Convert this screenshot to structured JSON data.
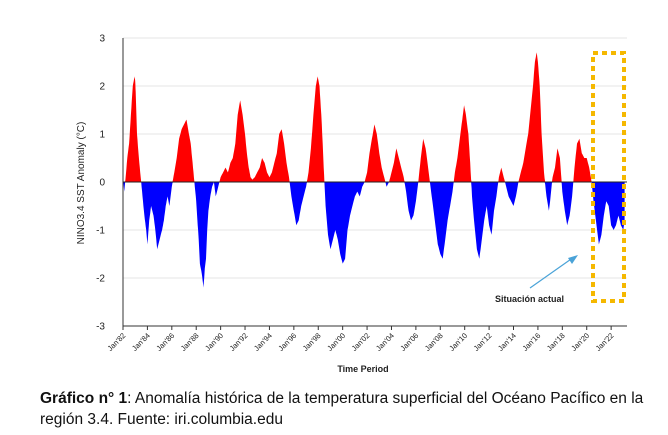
{
  "chart_data": {
    "type": "area",
    "ylabel": "NINO3.4 SST Anomaly (°C)",
    "xlabel": "Time Period",
    "ylim": [
      -3,
      3
    ],
    "yticks": [
      3,
      2,
      1,
      0,
      -1,
      -2,
      -3
    ],
    "xlim": [
      1982,
      2023.3
    ],
    "xtick_years": [
      1982,
      1984,
      1986,
      1988,
      1990,
      1992,
      1994,
      1996,
      1998,
      2000,
      2002,
      2004,
      2006,
      2008,
      2010,
      2012,
      2014,
      2016,
      2018,
      2020,
      2022
    ],
    "xtick_labels": [
      "Jan'82",
      "Jan'84",
      "Jan'86",
      "Jan'88",
      "Jan'90",
      "Jan'92",
      "Jan'94",
      "Jan'96",
      "Jan'98",
      "Jan'00",
      "Jan'02",
      "Jan'04",
      "Jan'06",
      "Jan'08",
      "Jan'10",
      "Jan'12",
      "Jan'14",
      "Jan'16",
      "Jan'18",
      "Jan'20",
      "Jan'22"
    ],
    "grid": "horizontal",
    "colors": {
      "positive": "#ff0000",
      "negative": "#0000ff",
      "highlight_box": "#f5b800",
      "annotation": "#4aa3d8"
    },
    "annotation": {
      "text": "Situación actual"
    },
    "series": [
      {
        "x": [
          1982.0,
          1982.1,
          1982.2,
          1982.35,
          1982.5,
          1982.65,
          1982.8,
          1982.95,
          1983.0,
          1983.05,
          1983.15,
          1983.3,
          1983.45,
          1983.6,
          1983.75,
          1983.9,
          1984.0,
          1984.15,
          1984.3,
          1984.5,
          1984.65,
          1984.8,
          1985.0,
          1985.2,
          1985.35,
          1985.5,
          1985.65,
          1985.8,
          1986.0,
          1986.2,
          1986.4,
          1986.6,
          1986.8,
          1987.0,
          1987.2,
          1987.4,
          1987.55,
          1987.7,
          1987.85,
          1988.0,
          1988.1,
          1988.2,
          1988.3,
          1988.45,
          1988.6,
          1988.7,
          1988.8,
          1988.9,
          1989.0,
          1989.15,
          1989.3,
          1989.45,
          1989.6,
          1989.8,
          1990.0,
          1990.2,
          1990.4,
          1990.6,
          1990.8,
          1991.0,
          1991.2,
          1991.4,
          1991.6,
          1991.8,
          1992.0,
          1992.15,
          1992.3,
          1992.45,
          1992.6,
          1992.8,
          1993.0,
          1993.2,
          1993.4,
          1993.6,
          1993.8,
          1994.0,
          1994.2,
          1994.4,
          1994.6,
          1994.8,
          1995.0,
          1995.2,
          1995.4,
          1995.6,
          1995.8,
          1996.0,
          1996.2,
          1996.4,
          1996.6,
          1996.8,
          1997.0,
          1997.2,
          1997.4,
          1997.6,
          1997.8,
          1997.95,
          1998.1,
          1998.25,
          1998.4,
          1998.5,
          1998.6,
          1998.8,
          1999.0,
          1999.2,
          1999.4,
          1999.6,
          1999.8,
          2000.0,
          2000.2,
          2000.4,
          2000.6,
          2000.8,
          2001.0,
          2001.2,
          2001.4,
          2001.6,
          2001.8,
          2002.0,
          2002.2,
          2002.4,
          2002.6,
          2002.8,
          2003.0,
          2003.2,
          2003.4,
          2003.6,
          2003.8,
          2004.0,
          2004.2,
          2004.4,
          2004.6,
          2004.8,
          2005.0,
          2005.2,
          2005.4,
          2005.6,
          2005.8,
          2006.0,
          2006.2,
          2006.4,
          2006.6,
          2006.8,
          2007.0,
          2007.2,
          2007.4,
          2007.6,
          2007.8,
          2008.0,
          2008.2,
          2008.4,
          2008.6,
          2008.8,
          2009.0,
          2009.2,
          2009.4,
          2009.6,
          2009.8,
          2009.95,
          2010.1,
          2010.3,
          2010.45,
          2010.6,
          2010.8,
          2011.0,
          2011.2,
          2011.4,
          2011.6,
          2011.8,
          2012.0,
          2012.2,
          2012.4,
          2012.6,
          2012.8,
          2013.0,
          2013.2,
          2013.4,
          2013.6,
          2013.8,
          2014.0,
          2014.2,
          2014.4,
          2014.6,
          2014.8,
          2015.0,
          2015.2,
          2015.4,
          2015.6,
          2015.75,
          2015.9,
          2016.0,
          2016.15,
          2016.3,
          2016.5,
          2016.7,
          2016.9,
          2017.0,
          2017.2,
          2017.4,
          2017.6,
          2017.8,
          2018.0,
          2018.2,
          2018.4,
          2018.6,
          2018.8,
          2019.0,
          2019.2,
          2019.4,
          2019.6,
          2019.8,
          2020.0,
          2020.2,
          2020.4,
          2020.6,
          2020.8,
          2021.0,
          2021.2,
          2021.4,
          2021.6,
          2021.8,
          2022.0,
          2022.2,
          2022.4,
          2022.6,
          2022.8,
          2023.0,
          2023.1
        ],
        "values": [
          0.1,
          -0.2,
          0.05,
          0.5,
          0.8,
          1.4,
          2.0,
          2.2,
          2.1,
          1.8,
          1.0,
          0.5,
          0.1,
          -0.3,
          -0.7,
          -1.0,
          -1.3,
          -0.8,
          -0.5,
          -0.7,
          -1.0,
          -1.4,
          -1.2,
          -1.0,
          -0.8,
          -0.5,
          -0.3,
          -0.5,
          -0.1,
          0.2,
          0.5,
          0.9,
          1.1,
          1.2,
          1.3,
          1.0,
          0.8,
          0.4,
          0.0,
          -0.4,
          -0.8,
          -1.2,
          -1.7,
          -1.9,
          -2.2,
          -1.8,
          -1.6,
          -1.0,
          -0.6,
          -0.3,
          -0.1,
          0.0,
          -0.3,
          -0.1,
          0.1,
          0.2,
          0.3,
          0.2,
          0.4,
          0.5,
          0.8,
          1.4,
          1.7,
          1.4,
          1.0,
          0.6,
          0.3,
          0.1,
          0.05,
          0.1,
          0.2,
          0.3,
          0.5,
          0.4,
          0.2,
          0.1,
          0.2,
          0.4,
          0.6,
          1.0,
          1.1,
          0.8,
          0.4,
          0.1,
          -0.3,
          -0.6,
          -0.9,
          -0.8,
          -0.5,
          -0.3,
          -0.1,
          0.2,
          0.7,
          1.4,
          2.0,
          2.2,
          2.0,
          1.4,
          0.6,
          0.0,
          -0.5,
          -1.1,
          -1.4,
          -1.2,
          -1.0,
          -1.2,
          -1.5,
          -1.7,
          -1.6,
          -1.0,
          -0.7,
          -0.5,
          -0.3,
          -0.2,
          -0.3,
          -0.1,
          0.0,
          0.2,
          0.6,
          0.9,
          1.2,
          1.0,
          0.6,
          0.3,
          0.1,
          -0.1,
          0.0,
          0.2,
          0.4,
          0.7,
          0.5,
          0.3,
          0.1,
          -0.2,
          -0.6,
          -0.8,
          -0.7,
          -0.4,
          0.0,
          0.5,
          0.9,
          0.7,
          0.3,
          -0.1,
          -0.5,
          -0.9,
          -1.3,
          -1.5,
          -1.6,
          -1.2,
          -0.8,
          -0.5,
          -0.2,
          0.2,
          0.5,
          0.9,
          1.3,
          1.6,
          1.4,
          1.0,
          0.4,
          -0.3,
          -0.9,
          -1.4,
          -1.6,
          -1.2,
          -0.8,
          -0.5,
          -0.9,
          -1.1,
          -0.6,
          -0.3,
          0.1,
          0.3,
          0.1,
          -0.1,
          -0.3,
          -0.4,
          -0.5,
          -0.3,
          0.0,
          0.2,
          0.4,
          0.7,
          1.0,
          1.5,
          2.0,
          2.5,
          2.7,
          2.5,
          2.0,
          1.0,
          0.2,
          -0.3,
          -0.6,
          -0.4,
          0.1,
          0.3,
          0.7,
          0.5,
          -0.2,
          -0.6,
          -0.9,
          -0.7,
          -0.3,
          0.3,
          0.8,
          0.9,
          0.6,
          0.5,
          0.5,
          0.3,
          0.0,
          -0.5,
          -0.9,
          -1.3,
          -1.1,
          -0.7,
          -0.4,
          -0.5,
          -0.9,
          -1.0,
          -0.9,
          -0.7,
          -0.9,
          -1.0,
          -0.8
        ]
      }
    ]
  },
  "caption": {
    "label": "Gráfico n° 1",
    "text": ": Anomalía histórica de la temperatura superficial del Océano Pacífico en la región 3.4. Fuente: iri.columbia.edu"
  }
}
